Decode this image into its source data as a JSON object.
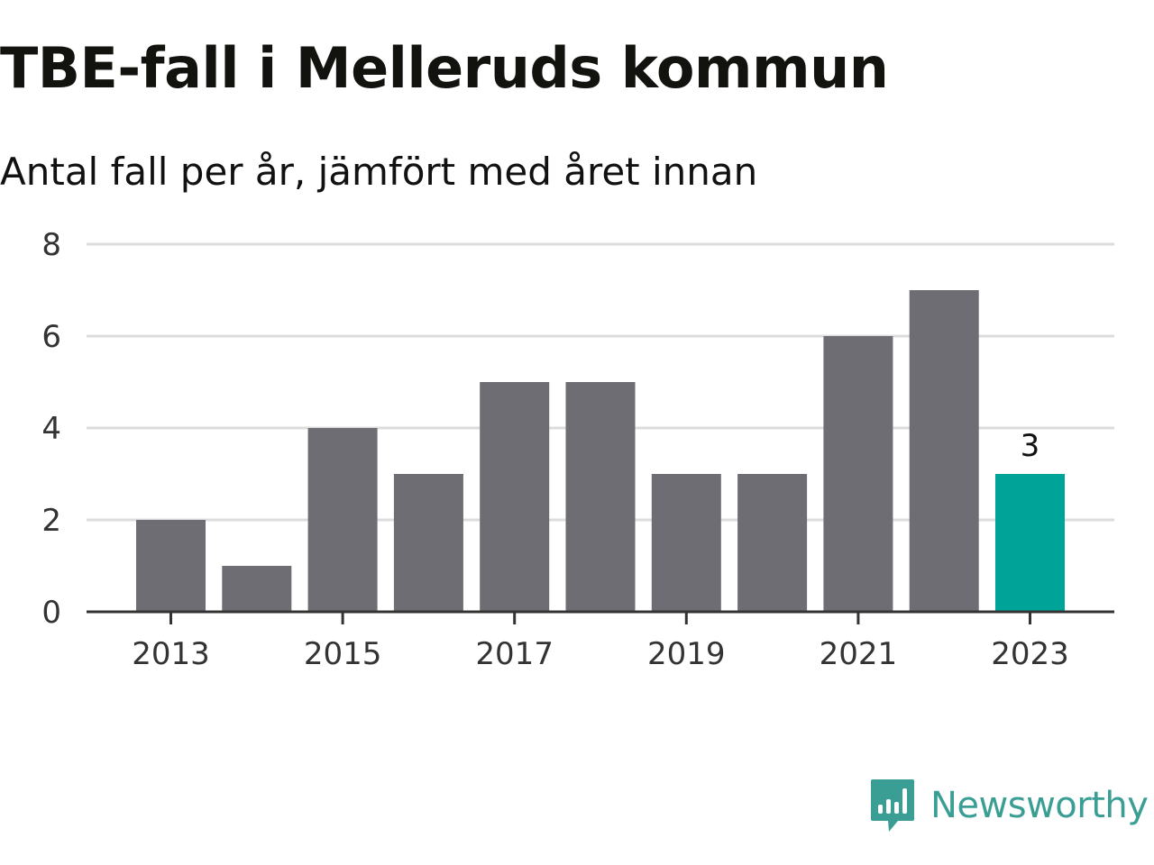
{
  "title": "TBE-fall i Melleruds kommun",
  "subtitle": "Antal fall per år, jämfört med året innan",
  "colors": {
    "bar": "#6e6d73",
    "highlight": "#00a398",
    "grid": "#dcdcdc",
    "axis": "#333333",
    "brand": "#3a9e95"
  },
  "brand": {
    "name": "Newsworthy",
    "icon": "newsworthy-logo-icon"
  },
  "chart_data": {
    "type": "bar",
    "title": "TBE-fall i Melleruds kommun",
    "subtitle": "Antal fall per år, jämfört med året innan",
    "xlabel": "",
    "ylabel": "",
    "categories": [
      "2013",
      "2014",
      "2015",
      "2016",
      "2017",
      "2018",
      "2019",
      "2020",
      "2021",
      "2022",
      "2023"
    ],
    "values": [
      2,
      1,
      4,
      3,
      5,
      5,
      3,
      3,
      6,
      7,
      3
    ],
    "highlight_index": 10,
    "data_labels": [
      {
        "index": 10,
        "text": "3"
      }
    ],
    "x_tick_labels": [
      "2013",
      "2015",
      "2017",
      "2019",
      "2021",
      "2023"
    ],
    "y_ticks": [
      0,
      2,
      4,
      6,
      8
    ],
    "ylim": [
      0,
      8
    ],
    "grid": true,
    "legend": "none"
  }
}
